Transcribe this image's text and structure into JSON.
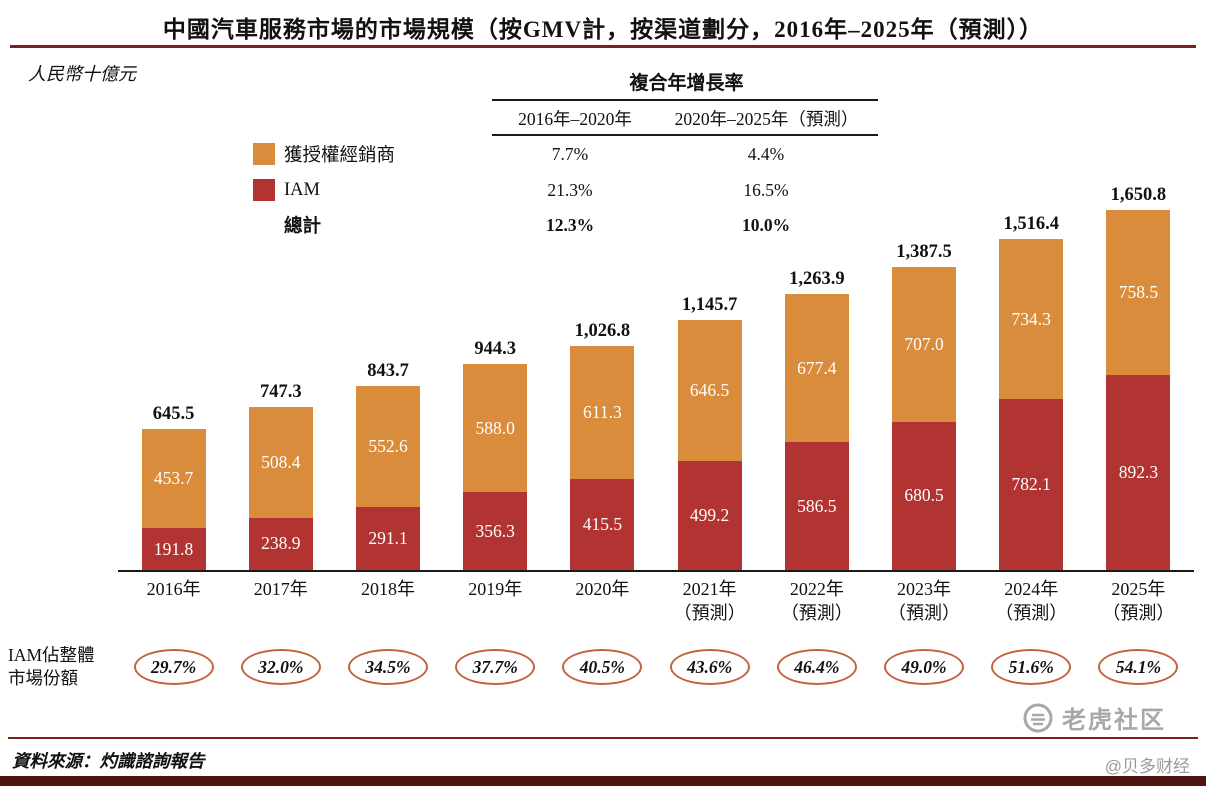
{
  "title": "中國汽車服務市場的市場規模（按GMV計，按渠道劃分，2016年–2025年（預測））",
  "unit_label": "人民幣十億元",
  "cagr_table": {
    "title": "複合年增長率",
    "col_headers": [
      "2016年–2020年",
      "2020年–2025年（預測）"
    ],
    "rows": [
      {
        "label": "獲授權經銷商",
        "color": "#D98C3C",
        "values": [
          "7.7%",
          "4.4%"
        ],
        "bold": false
      },
      {
        "label": "IAM",
        "color": "#B23432",
        "values": [
          "21.3%",
          "16.5%"
        ],
        "bold": false
      },
      {
        "label": "總計",
        "color": null,
        "values": [
          "12.3%",
          "10.0%"
        ],
        "bold": true
      }
    ]
  },
  "chart_data": {
    "type": "bar",
    "stacked": true,
    "title": "中國汽車服務市場的市場規模（按GMV計，按渠道劃分，2016年–2025年（預測））",
    "ylabel": "人民幣十億元",
    "categories": [
      "2016年",
      "2017年",
      "2018年",
      "2019年",
      "2020年",
      "2021年（預測）",
      "2022年（預測）",
      "2023年（預測）",
      "2024年（預測）",
      "2025年（預測）"
    ],
    "series": [
      {
        "name": "獲授權經銷商",
        "position": "top",
        "color": "#D98C3C",
        "values": [
          453.7,
          508.4,
          552.6,
          588.0,
          611.3,
          646.5,
          677.4,
          707.0,
          734.3,
          758.5
        ]
      },
      {
        "name": "IAM",
        "position": "bottom",
        "color": "#B23432",
        "values": [
          191.8,
          238.9,
          291.1,
          356.3,
          415.5,
          499.2,
          586.5,
          680.5,
          782.1,
          892.3
        ]
      }
    ],
    "totals": [
      645.5,
      747.3,
      843.7,
      944.3,
      1026.8,
      1145.7,
      1263.9,
      1387.5,
      1516.4,
      1650.8
    ],
    "iam_share_pct": [
      29.7,
      32.0,
      34.5,
      37.7,
      40.5,
      43.6,
      46.4,
      49.0,
      51.6,
      54.1
    ],
    "ylim": [
      0,
      1700
    ],
    "grid": false,
    "legend_position": "upper-left"
  },
  "iam_share_label": "IAM佔整體\n市場份額",
  "source": "資料來源：灼識諮詢報告",
  "watermark": {
    "name": "老虎社区",
    "handle": "@贝多财经"
  },
  "colors": {
    "dealer": "#D98C3C",
    "iam": "#B23432",
    "title_rule": "#7E1F1A",
    "source_rule": "#7E1F1A",
    "bottom_bar": "#4F1410",
    "oval_border": "#C4613E"
  }
}
